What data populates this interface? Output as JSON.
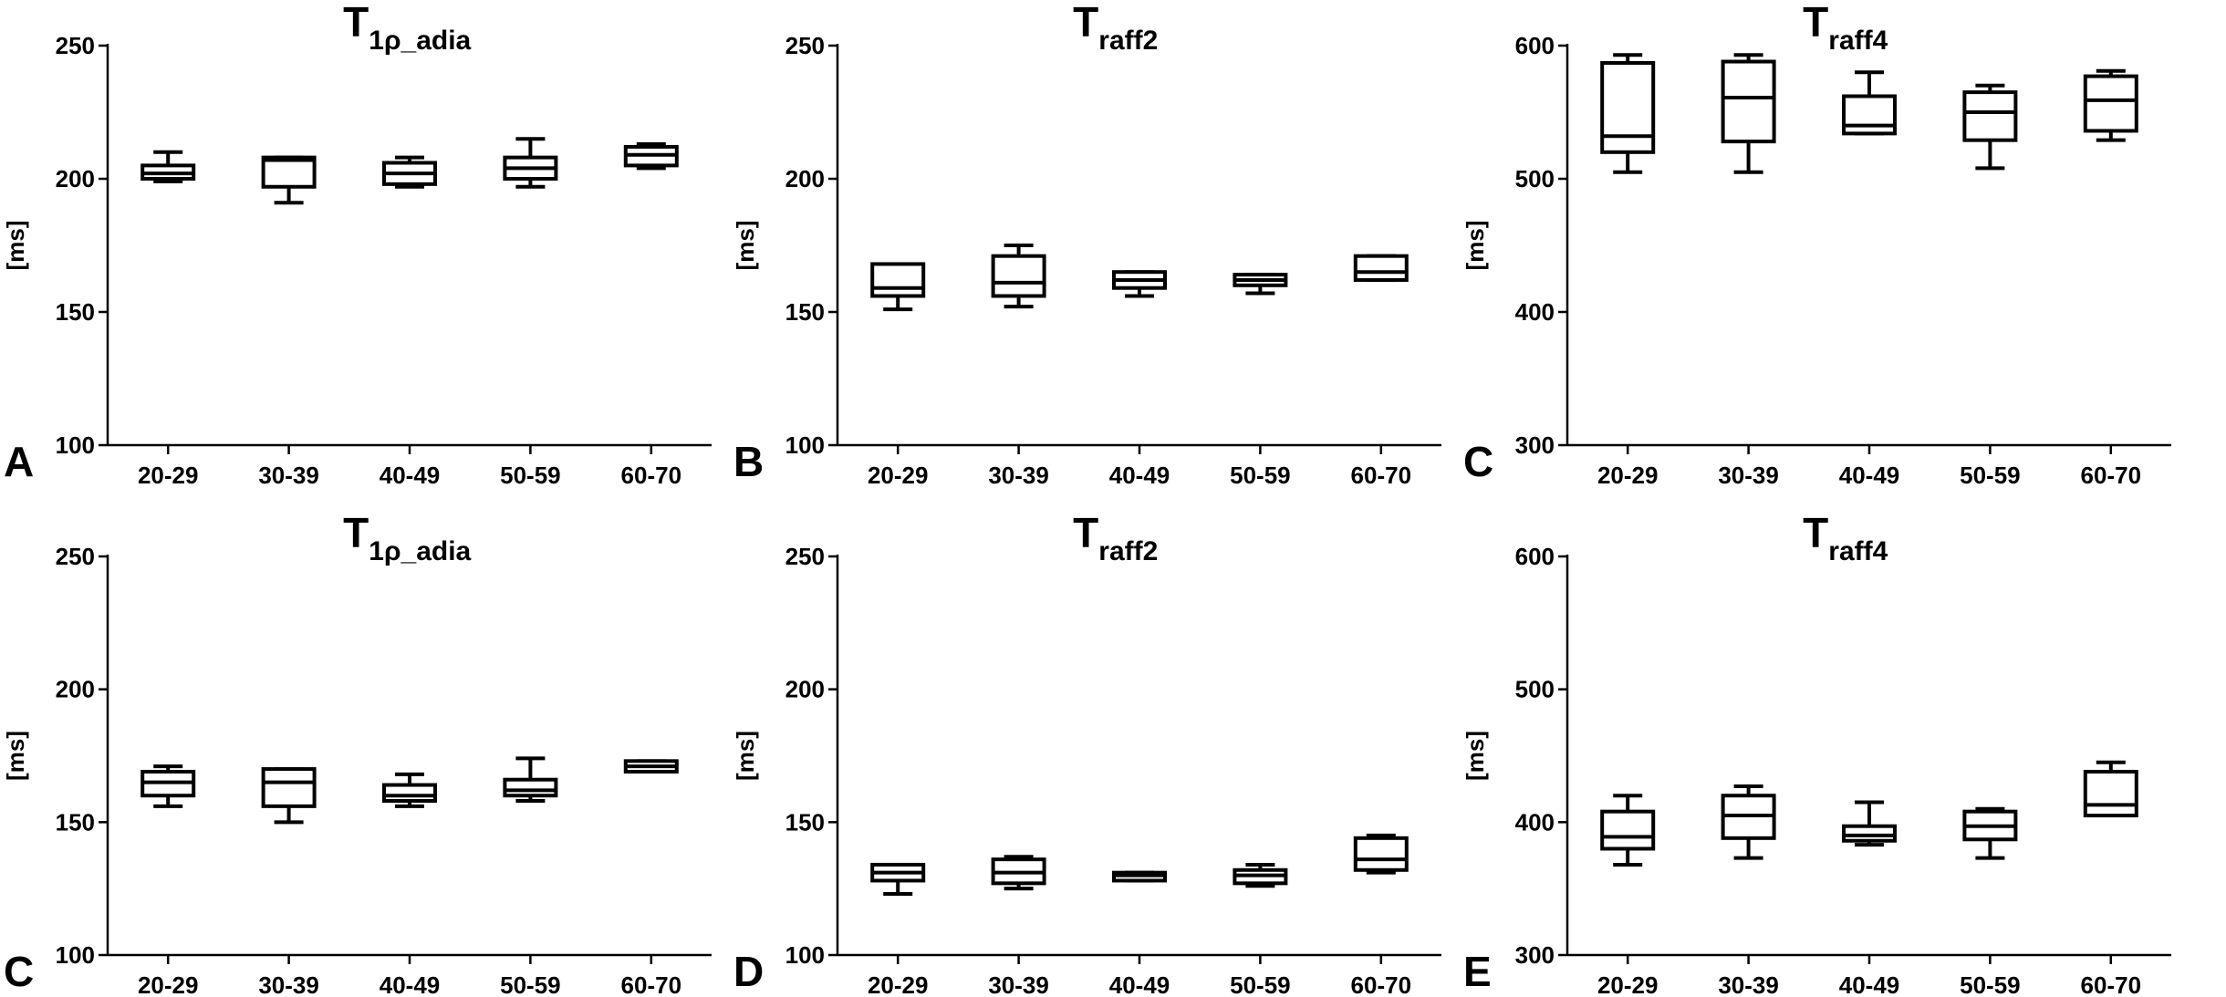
{
  "chart_data": [
    {
      "type": "box",
      "panel_letter": "A",
      "title": {
        "main": "T",
        "sub": "1ρ_adia"
      },
      "ylabel": "[ms]",
      "ylim": [
        100,
        250
      ],
      "yticks": [
        100,
        150,
        200,
        250
      ],
      "categories": [
        "20-29",
        "30-39",
        "40-49",
        "50-59",
        "60-70"
      ],
      "boxes": [
        {
          "min": 199,
          "q1": 200,
          "median": 202,
          "q3": 205,
          "max": 210
        },
        {
          "min": 191,
          "q1": 197,
          "median": 207,
          "q3": 208,
          "max": 208
        },
        {
          "min": 197,
          "q1": 198,
          "median": 202,
          "q3": 206,
          "max": 208
        },
        {
          "min": 197,
          "q1": 200,
          "median": 204,
          "q3": 208,
          "max": 215
        },
        {
          "min": 204,
          "q1": 205,
          "median": 209,
          "q3": 212,
          "max": 213
        }
      ]
    },
    {
      "type": "box",
      "panel_letter": "B",
      "title": {
        "main": "T",
        "sub": "raff2"
      },
      "ylabel": "[ms]",
      "ylim": [
        100,
        250
      ],
      "yticks": [
        100,
        150,
        200,
        250
      ],
      "categories": [
        "20-29",
        "30-39",
        "40-49",
        "50-59",
        "60-70"
      ],
      "boxes": [
        {
          "min": 151,
          "q1": 156,
          "median": 159,
          "q3": 168,
          "max": 168
        },
        {
          "min": 152,
          "q1": 156,
          "median": 161,
          "q3": 171,
          "max": 175
        },
        {
          "min": 156,
          "q1": 159,
          "median": 162,
          "q3": 165,
          "max": 165
        },
        {
          "min": 157,
          "q1": 160,
          "median": 162,
          "q3": 164,
          "max": 164
        },
        {
          "min": 162,
          "q1": 162,
          "median": 165,
          "q3": 171,
          "max": 171
        }
      ]
    },
    {
      "type": "box",
      "panel_letter": "C",
      "title": {
        "main": "T",
        "sub": "raff4"
      },
      "ylabel": "[ms]",
      "ylim": [
        300,
        600
      ],
      "yticks": [
        300,
        400,
        500,
        600
      ],
      "categories": [
        "20-29",
        "30-39",
        "40-49",
        "50-59",
        "60-70"
      ],
      "boxes": [
        {
          "min": 505,
          "q1": 520,
          "median": 532,
          "q3": 587,
          "max": 593
        },
        {
          "min": 505,
          "q1": 528,
          "median": 561,
          "q3": 588,
          "max": 593
        },
        {
          "min": 534,
          "q1": 534,
          "median": 540,
          "q3": 562,
          "max": 580
        },
        {
          "min": 508,
          "q1": 529,
          "median": 550,
          "q3": 565,
          "max": 570
        },
        {
          "min": 529,
          "q1": 536,
          "median": 559,
          "q3": 577,
          "max": 581
        }
      ]
    },
    {
      "type": "box",
      "panel_letter": "C",
      "title": {
        "main": "T",
        "sub": "1ρ_adia"
      },
      "ylabel": "[ms]",
      "ylim": [
        100,
        250
      ],
      "yticks": [
        100,
        150,
        200,
        250
      ],
      "categories": [
        "20-29",
        "30-39",
        "40-49",
        "50-59",
        "60-70"
      ],
      "boxes": [
        {
          "min": 156,
          "q1": 160,
          "median": 165,
          "q3": 169,
          "max": 171
        },
        {
          "min": 150,
          "q1": 156,
          "median": 165,
          "q3": 170,
          "max": 170
        },
        {
          "min": 156,
          "q1": 158,
          "median": 160,
          "q3": 164,
          "max": 168
        },
        {
          "min": 158,
          "q1": 160,
          "median": 162,
          "q3": 166,
          "max": 174
        },
        {
          "min": 169,
          "q1": 169,
          "median": 171,
          "q3": 173,
          "max": 173
        }
      ]
    },
    {
      "type": "box",
      "panel_letter": "D",
      "title": {
        "main": "T",
        "sub": "raff2"
      },
      "ylabel": "[ms]",
      "ylim": [
        100,
        250
      ],
      "yticks": [
        100,
        150,
        200,
        250
      ],
      "categories": [
        "20-29",
        "30-39",
        "40-49",
        "50-59",
        "60-70"
      ],
      "boxes": [
        {
          "min": 123,
          "q1": 128,
          "median": 131,
          "q3": 134,
          "max": 134
        },
        {
          "min": 125,
          "q1": 127,
          "median": 131,
          "q3": 136,
          "max": 137
        },
        {
          "min": 128,
          "q1": 128,
          "median": 130,
          "q3": 131,
          "max": 131
        },
        {
          "min": 126,
          "q1": 127,
          "median": 130,
          "q3": 132,
          "max": 134
        },
        {
          "min": 131,
          "q1": 132,
          "median": 136,
          "q3": 144,
          "max": 145
        }
      ]
    },
    {
      "type": "box",
      "panel_letter": "E",
      "title": {
        "main": "T",
        "sub": "raff4"
      },
      "ylabel": "[ms]",
      "ylim": [
        300,
        600
      ],
      "yticks": [
        300,
        400,
        500,
        600
      ],
      "categories": [
        "20-29",
        "30-39",
        "40-49",
        "50-59",
        "60-70"
      ],
      "boxes": [
        {
          "min": 368,
          "q1": 380,
          "median": 389,
          "q3": 408,
          "max": 420
        },
        {
          "min": 373,
          "q1": 388,
          "median": 405,
          "q3": 420,
          "max": 427
        },
        {
          "min": 383,
          "q1": 386,
          "median": 390,
          "q3": 397,
          "max": 415
        },
        {
          "min": 373,
          "q1": 387,
          "median": 397,
          "q3": 408,
          "max": 410
        },
        {
          "min": 405,
          "q1": 405,
          "median": 413,
          "q3": 438,
          "max": 445
        }
      ]
    }
  ]
}
